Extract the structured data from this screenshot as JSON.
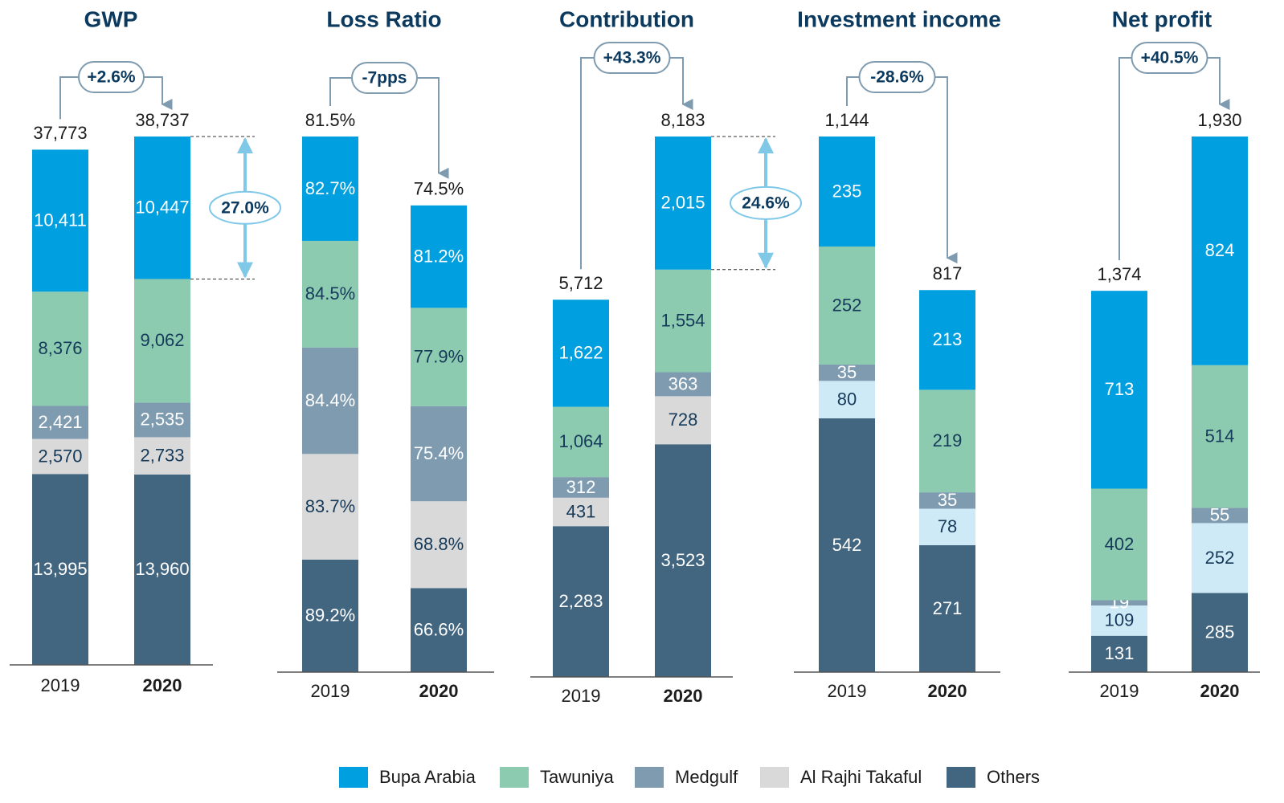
{
  "chart_data": [
    {
      "type": "bar",
      "stacked": true,
      "title": "GWP",
      "categories": [
        "2019",
        "2020"
      ],
      "series": [
        {
          "name": "Bupa Arabia",
          "color": "#009fdf",
          "values": [
            10411,
            10447
          ],
          "value_labels": [
            "10,411",
            "10,447"
          ]
        },
        {
          "name": "Tawuniya",
          "color": "#8ccbb0",
          "values": [
            8376,
            9062
          ],
          "value_labels": [
            "8,376",
            "9,062"
          ]
        },
        {
          "name": "Medgulf",
          "color": "#7f9bb0",
          "values": [
            2421,
            2535
          ],
          "value_labels": [
            "2,421",
            "2,535"
          ]
        },
        {
          "name": "Al Rajhi Takaful",
          "color": "#d9d9d9",
          "values": [
            2570,
            2733
          ],
          "value_labels": [
            "2,570",
            "2,733"
          ]
        },
        {
          "name": "Others",
          "color": "#426580",
          "values": [
            13995,
            13960
          ],
          "value_labels": [
            "13,995",
            "13,960"
          ]
        }
      ],
      "totals": {
        "values": [
          37773,
          38737
        ],
        "value_labels": [
          "37,773",
          "38,737"
        ]
      },
      "change": "+2.6%",
      "share": "27.0%",
      "ylim": [
        0,
        38737
      ]
    },
    {
      "type": "bar",
      "stacked": true,
      "title": "Loss Ratio",
      "categories": [
        "2019",
        "2020"
      ],
      "series": [
        {
          "name": "Bupa Arabia",
          "color": "#009fdf",
          "values": [
            82.7,
            81.2
          ],
          "value_labels": [
            "82.7%",
            "81.2%"
          ]
        },
        {
          "name": "Tawuniya",
          "color": "#8ccbb0",
          "values": [
            84.5,
            77.9
          ],
          "value_labels": [
            "84.5%",
            "77.9%"
          ]
        },
        {
          "name": "Medgulf",
          "color": "#7f9bb0",
          "values": [
            84.4,
            75.4
          ],
          "value_labels": [
            "84.4%",
            "75.4%"
          ]
        },
        {
          "name": "Al Rajhi Takaful",
          "color": "#d9d9d9",
          "values": [
            83.7,
            68.8
          ],
          "value_labels": [
            "83.7%",
            "68.8%"
          ]
        },
        {
          "name": "Others",
          "color": "#426580",
          "values": [
            89.2,
            66.6
          ],
          "value_labels": [
            "89.2%",
            "66.6%"
          ]
        }
      ],
      "totals": {
        "values": [
          81.5,
          74.5
        ],
        "value_labels": [
          "81.5%",
          "74.5%"
        ]
      },
      "change": "-7pps",
      "ylim": [
        0,
        424.5
      ]
    },
    {
      "type": "bar",
      "stacked": true,
      "title": "Contribution",
      "categories": [
        "2019",
        "2020"
      ],
      "series": [
        {
          "name": "Bupa Arabia",
          "color": "#009fdf",
          "values": [
            1622,
            2015
          ],
          "value_labels": [
            "1,622",
            "2,015"
          ]
        },
        {
          "name": "Tawuniya",
          "color": "#8ccbb0",
          "values": [
            1064,
            1554
          ],
          "value_labels": [
            "1,064",
            "1,554"
          ]
        },
        {
          "name": "Medgulf",
          "color": "#7f9bb0",
          "values": [
            312,
            363
          ]
        },
        {
          "name": "Al Rajhi Takaful",
          "color": "#d9d9d9",
          "values": [
            431,
            728
          ]
        },
        {
          "name": "Others",
          "color": "#426580",
          "values": [
            2283,
            3523
          ],
          "value_labels": [
            "2,283",
            "3,523"
          ]
        }
      ],
      "totals": {
        "values": [
          5712,
          8183
        ],
        "value_labels": [
          "5,712",
          "8,183"
        ]
      },
      "change": "+43.3%",
      "share": "24.6%",
      "ylim": [
        0,
        8183
      ]
    },
    {
      "type": "bar",
      "stacked": true,
      "title": "Investment income",
      "categories": [
        "2019",
        "2020"
      ],
      "series": [
        {
          "name": "Bupa Arabia",
          "color": "#009fdf",
          "values": [
            235,
            213
          ]
        },
        {
          "name": "Tawuniya",
          "color": "#8ccbb0",
          "values": [
            252,
            219
          ]
        },
        {
          "name": "Medgulf",
          "color": "#7f9bb0",
          "values": [
            35,
            35
          ]
        },
        {
          "name": "Al Rajhi Takaful",
          "color": "#cfeaf7",
          "values": [
            80,
            78
          ]
        },
        {
          "name": "Others",
          "color": "#426580",
          "values": [
            542,
            271
          ]
        }
      ],
      "totals": {
        "values": [
          1144,
          817
        ],
        "value_labels": [
          "1,144",
          "817"
        ]
      },
      "change": "-28.6%",
      "ylim": [
        0,
        1144
      ]
    },
    {
      "type": "bar",
      "stacked": true,
      "title": "Net profit",
      "categories": [
        "2019",
        "2020"
      ],
      "series": [
        {
          "name": "Bupa Arabia",
          "color": "#009fdf",
          "values": [
            713,
            824
          ]
        },
        {
          "name": "Tawuniya",
          "color": "#8ccbb0",
          "values": [
            402,
            514
          ]
        },
        {
          "name": "Medgulf",
          "color": "#7f9bb0",
          "values": [
            19,
            55
          ]
        },
        {
          "name": "Al Rajhi Takaful",
          "color": "#cfeaf7",
          "values": [
            109,
            252
          ]
        },
        {
          "name": "Others",
          "color": "#426580",
          "values": [
            131,
            285
          ]
        }
      ],
      "totals": {
        "values": [
          1374,
          1930
        ],
        "value_labels": [
          "1,374",
          "1,930"
        ]
      },
      "change": "+40.5%",
      "ylim": [
        0,
        1930
      ]
    }
  ]
}
